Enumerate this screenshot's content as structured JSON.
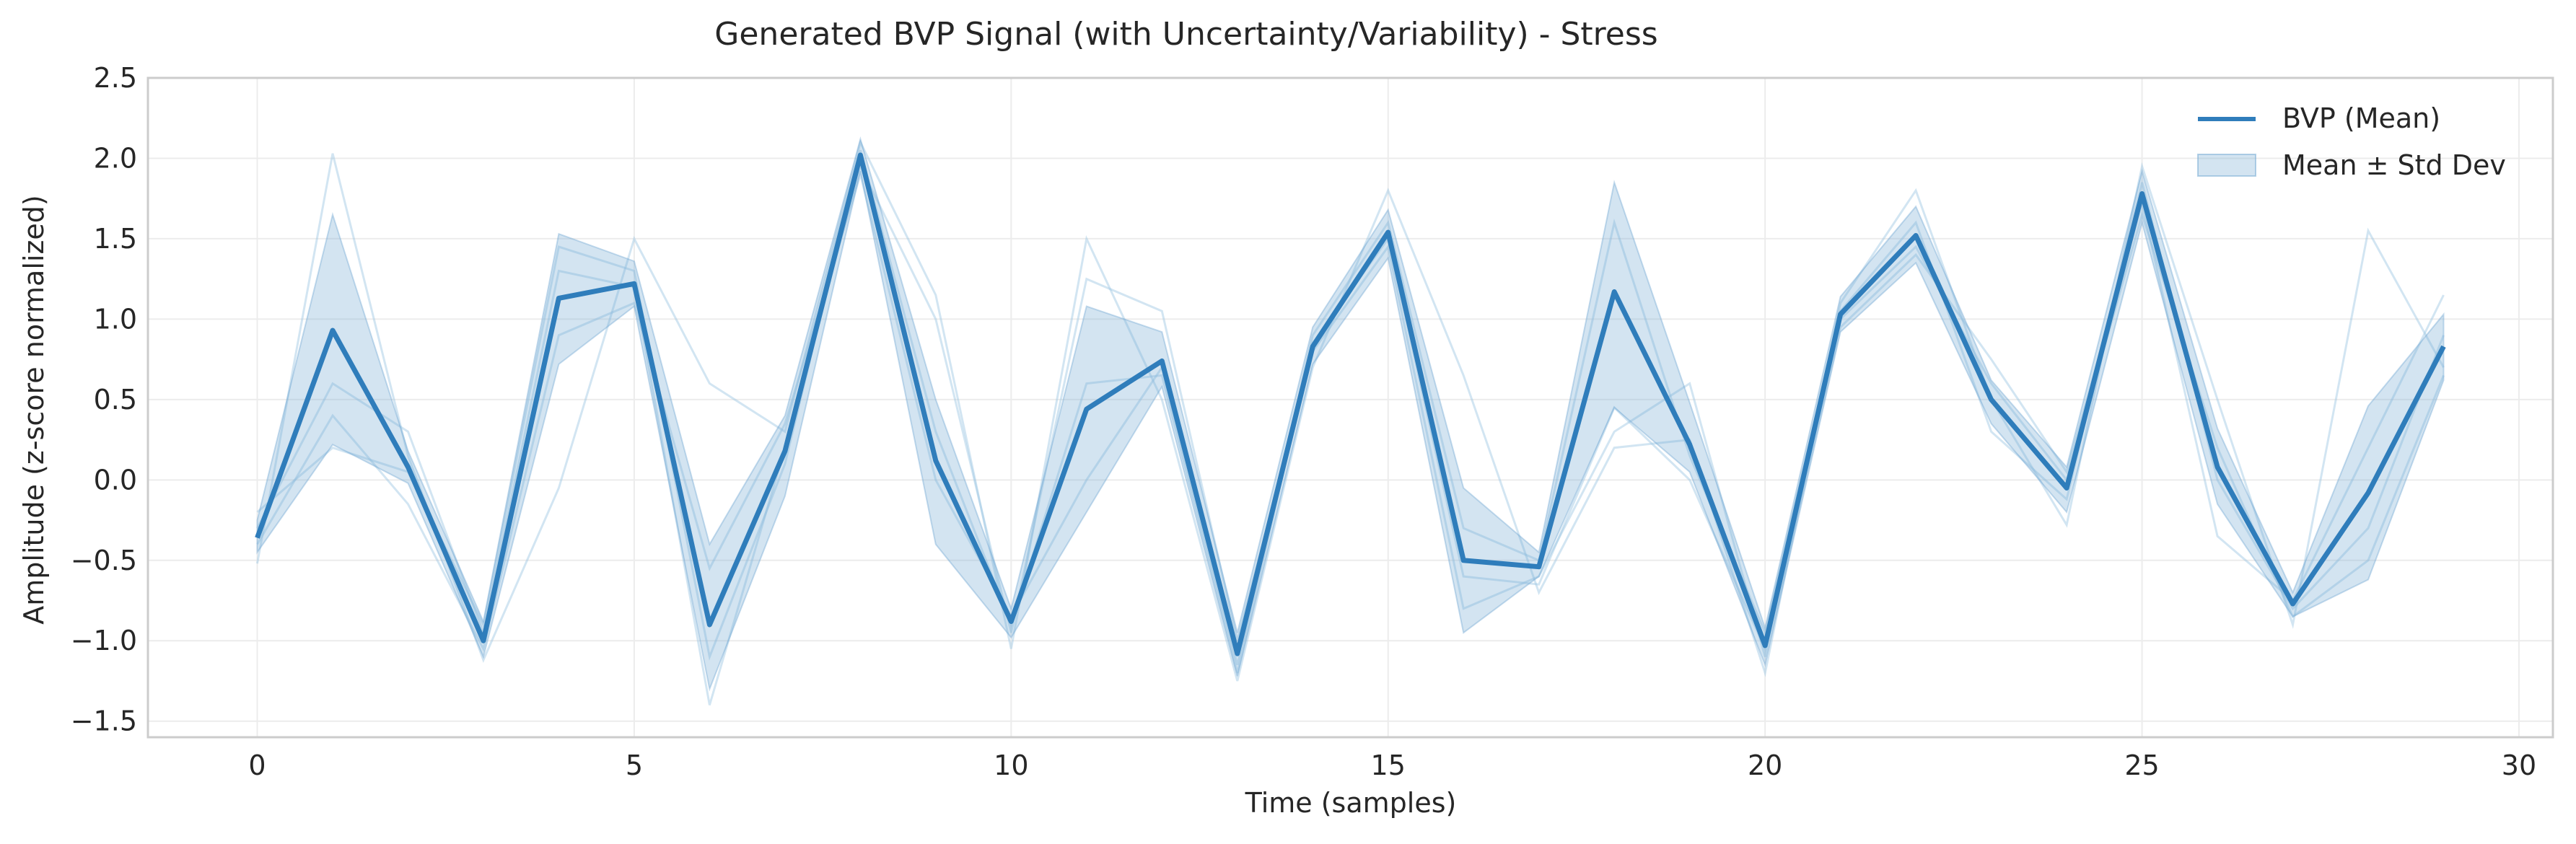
{
  "chart_data": {
    "type": "line",
    "title": "Generated BVP Signal (with Uncertainty/Variability) - Stress",
    "xlabel": "Time (samples)",
    "ylabel": "Amplitude (z-score normalized)",
    "xlim": [
      -1.45,
      30.45
    ],
    "ylim": [
      -1.6,
      2.5
    ],
    "xticks": [
      0,
      5,
      10,
      15,
      20,
      25,
      30
    ],
    "yticks": [
      -1.5,
      -1.0,
      -0.5,
      0.0,
      0.5,
      1.0,
      1.5,
      2.0,
      2.5
    ],
    "ytick_labels": [
      "−1.5",
      "−1.0",
      "−0.5",
      "0.0",
      "0.5",
      "1.0",
      "1.5",
      "2.0",
      "2.5"
    ],
    "grid": true,
    "legend_position": "top-right",
    "colors": {
      "mean": "#2f7dbb",
      "band": "#6ea6d2",
      "samples": "#9cc5e3",
      "axes": "#cccccc",
      "grid": "#ececec"
    },
    "x": [
      0,
      1,
      2,
      3,
      4,
      5,
      6,
      7,
      8,
      9,
      10,
      11,
      12,
      13,
      14,
      15,
      16,
      17,
      18,
      19,
      20,
      21,
      22,
      23,
      24,
      25,
      26,
      27,
      28,
      29
    ],
    "series": [
      {
        "name": "BVP (Mean)",
        "values": [
          -0.36,
          0.93,
          0.08,
          -1.0,
          1.13,
          1.22,
          -0.9,
          0.18,
          2.02,
          0.12,
          -0.88,
          0.44,
          0.74,
          -1.08,
          0.83,
          1.54,
          -0.5,
          -0.54,
          1.17,
          0.22,
          -1.03,
          1.03,
          1.52,
          0.5,
          -0.05,
          1.78,
          0.08,
          -0.77,
          -0.08,
          0.83
        ]
      },
      {
        "name": "Mean ± Std Dev",
        "lower": [
          -0.45,
          0.22,
          -0.02,
          -1.1,
          0.72,
          1.08,
          -1.3,
          -0.1,
          1.92,
          -0.4,
          -0.98,
          -0.2,
          0.58,
          -1.22,
          0.72,
          1.38,
          -0.95,
          -0.6,
          0.45,
          0.05,
          -1.15,
          0.92,
          1.35,
          0.35,
          -0.2,
          1.6,
          -0.15,
          -0.85,
          -0.62,
          0.62
        ],
        "upper": [
          -0.25,
          1.65,
          0.18,
          -0.88,
          1.53,
          1.36,
          -0.4,
          0.4,
          2.12,
          0.5,
          -0.8,
          1.08,
          0.92,
          -0.95,
          0.95,
          1.68,
          -0.05,
          -0.45,
          1.85,
          0.48,
          -0.92,
          1.14,
          1.7,
          0.62,
          0.08,
          1.92,
          0.32,
          -0.7,
          0.46,
          1.03
        ]
      }
    ],
    "samples": [
      [
        -0.52,
        2.03,
        0.15,
        -1.12,
        -0.05,
        1.5,
        0.6,
        0.3,
        2.1,
        1.15,
        -1.05,
        1.5,
        0.5,
        -1.25,
        0.7,
        1.8,
        0.65,
        -0.7,
        0.2,
        0.25,
        -1.2,
        1.1,
        1.8,
        0.5,
        -0.28,
        1.95,
        0.5,
        -0.9,
        1.55,
        0.7
      ],
      [
        -0.3,
        0.6,
        0.3,
        -0.95,
        1.3,
        1.2,
        -1.4,
        0.2,
        1.95,
        1.0,
        -0.95,
        1.25,
        1.05,
        -1.0,
        0.8,
        1.45,
        -0.8,
        -0.6,
        0.3,
        0.6,
        -1.1,
        0.95,
        1.4,
        0.75,
        0.05,
        1.72,
        -0.35,
        -0.75,
        0.2,
        1.15
      ],
      [
        -0.4,
        0.4,
        -0.15,
        -1.05,
        0.9,
        1.1,
        -0.55,
        0.35,
        1.9,
        0.0,
        -0.85,
        0.0,
        0.7,
        -1.15,
        0.9,
        1.6,
        -0.3,
        -0.5,
        1.6,
        0.15,
        -0.95,
        1.05,
        1.6,
        0.3,
        -0.12,
        1.85,
        0.0,
        -0.8,
        -0.3,
        0.9
      ],
      [
        -0.2,
        0.2,
        0.05,
        -0.9,
        1.45,
        1.3,
        -1.1,
        0.1,
        2.05,
        0.3,
        -0.9,
        0.6,
        0.65,
        -1.2,
        0.85,
        1.5,
        -0.6,
        -0.65,
        0.45,
        0.0,
        -1.05,
        1.0,
        1.45,
        0.6,
        0.0,
        1.65,
        0.2,
        -0.85,
        -0.5,
        0.65
      ]
    ]
  }
}
